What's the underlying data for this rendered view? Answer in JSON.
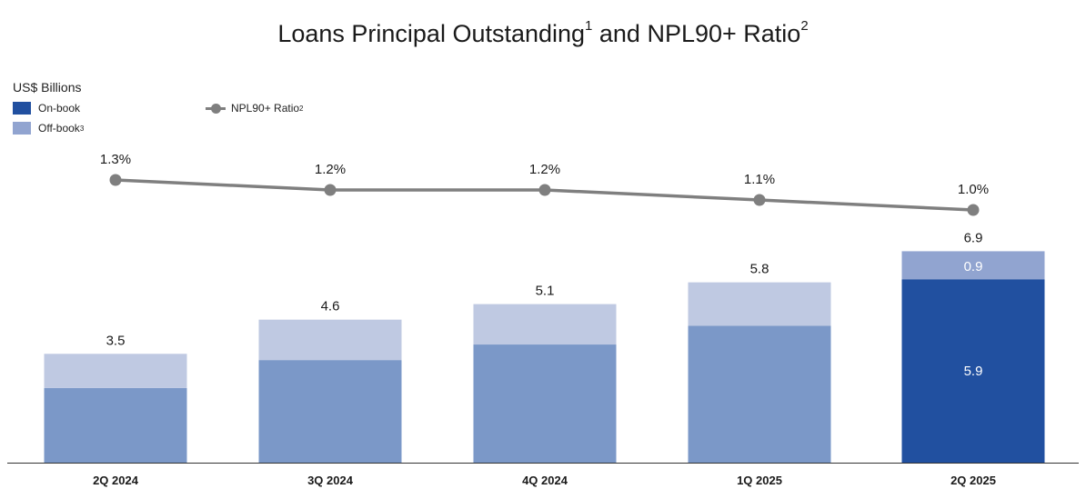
{
  "title": {
    "text": "Loans Principal Outstanding",
    "sup1": "1",
    "mid": " and NPL90+ Ratio",
    "sup2": "2"
  },
  "unit_label": "US$ Billions",
  "legend": {
    "onbook": "On-book",
    "offbook": "Off-book",
    "offbook_sup": "3",
    "ratio": "NPL90+ Ratio",
    "ratio_sup": "2"
  },
  "colors": {
    "onbook_past": "#7b98c8",
    "offbook_past": "#bfc9e2",
    "onbook_current": "#2150a0",
    "offbook_current": "#91a4d0",
    "line": "#7f7f7f",
    "axis": "#333333"
  },
  "chart_data": {
    "type": "bar",
    "categories": [
      "2Q 2024",
      "3Q 2024",
      "4Q 2024",
      "1Q 2025",
      "2Q 2025"
    ],
    "series": [
      {
        "name": "On-book",
        "values": [
          2.4,
          3.3,
          3.8,
          4.4,
          5.9
        ]
      },
      {
        "name": "Off-book",
        "values": [
          1.1,
          1.3,
          1.3,
          1.4,
          0.9
        ]
      }
    ],
    "totals": [
      3.5,
      4.6,
      5.1,
      5.8,
      6.9
    ],
    "total_labels": [
      "3.5",
      "4.6",
      "5.1",
      "5.8",
      "6.9"
    ],
    "segment_labels_last": {
      "on": "5.9",
      "off": "0.9"
    },
    "ratio": {
      "name": "NPL90+ Ratio",
      "values": [
        1.3,
        1.2,
        1.2,
        1.1,
        1.0
      ],
      "labels": [
        "1.3%",
        "1.2%",
        "1.2%",
        "1.1%",
        "1.0%"
      ]
    },
    "stacked": true,
    "ylim": [
      0,
      6.9
    ],
    "grid": false,
    "legend_position": "top-left"
  }
}
